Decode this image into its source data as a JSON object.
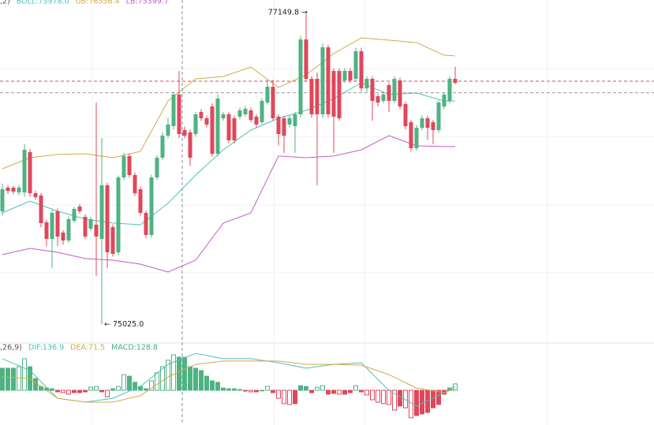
{
  "chart_data": [
    {
      "type": "candlestick",
      "header": [
        {
          "text": ",2)",
          "color": "#555555"
        },
        {
          "text": "BOLL:75978.0",
          "color": "#4fc1b5"
        },
        {
          "text": "UB:76556.4",
          "color": "#d4a94a"
        },
        {
          "text": "LB:75399.7",
          "color": "#c45cc8"
        }
      ],
      "ylim": [
        74914,
        77247
      ],
      "up_color": "#4fb283",
      "down_color": "#e0475b",
      "open": [
        75800,
        75962,
        75962,
        75929,
        75929,
        76205,
        75924,
        75908,
        75724,
        75611,
        75800,
        75654,
        75600,
        75735,
        75832,
        75762,
        75681,
        75708,
        75611,
        75978,
        75692,
        75519,
        76032,
        76178,
        76048,
        75951,
        75789,
        75638,
        76032,
        76167,
        76318,
        76383,
        76599,
        76356,
        76340,
        76329,
        76480,
        76437,
        76518,
        76194,
        76437,
        76464,
        76437,
        76448,
        76464,
        76491,
        76448,
        76410,
        76545,
        76653,
        76448,
        76437,
        76394,
        76383,
        76464,
        76977,
        76707,
        76707,
        76464,
        76923,
        76761,
        76761,
        76696,
        76761,
        76707,
        76896,
        76642,
        76707,
        76588,
        76556,
        76664,
        76556,
        76696,
        76534,
        76410,
        76232,
        76372,
        76437,
        76410,
        76356,
        76518,
        76556,
        76707
      ],
      "high": [
        75990,
        75980,
        75975,
        75980,
        76260,
        76225,
        75940,
        75925,
        75740,
        75810,
        75820,
        75670,
        75765,
        75830,
        75850,
        75780,
        75760,
        76545,
        76302,
        75995,
        75710,
        76045,
        76200,
        76195,
        76065,
        75970,
        75805,
        76050,
        76185,
        76340,
        76440,
        76620,
        76761,
        76380,
        76360,
        76480,
        76500,
        76455,
        76540,
        76600,
        76480,
        76480,
        76455,
        76510,
        76520,
        76510,
        76465,
        76575,
        76700,
        76700,
        76465,
        76455,
        76455,
        76480,
        77000,
        77149.8,
        76725,
        76750,
        76950,
        76940,
        76780,
        76780,
        76780,
        76780,
        76920,
        76920,
        76725,
        76725,
        76605,
        76620,
        76680,
        76725,
        76715,
        76550,
        76425,
        76390,
        76455,
        76455,
        76425,
        76560,
        76615,
        76725,
        76790
      ],
      "low": [
        75770,
        75920,
        75915,
        75910,
        75900,
        75900,
        75880,
        75690,
        75560,
        75411,
        75560,
        75570,
        75585,
        75720,
        75785,
        75610,
        75665,
        75357,
        75025.0,
        75410,
        75490,
        75500,
        76015,
        76030,
        75905,
        75770,
        75615,
        75620,
        76015,
        76150,
        76300,
        76360,
        76300,
        76300,
        76110,
        76310,
        76420,
        76375,
        76175,
        76175,
        76420,
        76265,
        76265,
        76430,
        76450,
        76410,
        76375,
        76395,
        76530,
        76420,
        76250,
        76200,
        76375,
        76200,
        76440,
        76690,
        76440,
        75978,
        76440,
        76440,
        76200,
        76420,
        76680,
        76680,
        76690,
        76620,
        76620,
        76420,
        76520,
        76540,
        76480,
        76540,
        76500,
        76360,
        76210,
        76215,
        76355,
        76290,
        76260,
        76340,
        76500,
        76540,
        76670
      ],
      "close": [
        75951,
        75940,
        75935,
        75962,
        76221,
        75924,
        75897,
        75719,
        75611,
        75789,
        75627,
        75600,
        75746,
        75816,
        75800,
        75627,
        75746,
        75627,
        75978,
        75519,
        75508,
        76032,
        76178,
        76048,
        75924,
        75789,
        75638,
        76032,
        76167,
        76318,
        76394,
        76599,
        76329,
        76318,
        76167,
        76464,
        76437,
        76394,
        76194,
        76572,
        76464,
        76286,
        76286,
        76491,
        76502,
        76426,
        76394,
        76556,
        76653,
        76437,
        76329,
        76318,
        76437,
        76464,
        76977,
        76707,
        76464,
        76464,
        76923,
        76464,
        76448,
        76437,
        76761,
        76696,
        76896,
        76642,
        76707,
        76556,
        76545,
        76599,
        76556,
        76707,
        76518,
        76383,
        76232,
        76372,
        76437,
        76372,
        76356,
        76545,
        76599,
        76707,
        76680
      ],
      "overlays": [
        {
          "color": "#d4a94a",
          "x": [
            0,
            5,
            10,
            15,
            20,
            25,
            30,
            35,
            40,
            45,
            50,
            55,
            60,
            65,
            70,
            75,
            80,
            82
          ],
          "values": [
            76091,
            76167,
            76189,
            76194,
            76167,
            76210,
            76556,
            76707,
            76723,
            76788,
            76648,
            76734,
            76880,
            76988,
            76972,
            76955,
            76869,
            76864
          ]
        },
        {
          "color": "#4fc1b5",
          "x": [
            0,
            5,
            10,
            15,
            20,
            25,
            30,
            35,
            40,
            45,
            50,
            55,
            60,
            65,
            70,
            75,
            80,
            82
          ],
          "values": [
            75789,
            75870,
            75800,
            75746,
            75719,
            75708,
            75854,
            76048,
            76221,
            76356,
            76437,
            76491,
            76572,
            76680,
            76599,
            76610,
            76556,
            76556
          ]
        },
        {
          "color": "#c45cc8",
          "x": [
            0,
            5,
            10,
            15,
            20,
            25,
            30,
            35,
            40,
            45,
            50,
            55,
            60,
            65,
            70,
            75,
            80,
            82
          ],
          "values": [
            75503,
            75546,
            75519,
            75476,
            75465,
            75438,
            75384,
            75465,
            75719,
            75789,
            76178,
            76167,
            76178,
            76221,
            76318,
            76248,
            76243,
            76243
          ]
        }
      ],
      "price_lines": [
        {
          "value": 76691,
          "color": "#e0475b"
        },
        {
          "value": 76612,
          "color": "#999999"
        }
      ],
      "annotations": [
        "77149.8 →",
        "← 75025.0"
      ]
    },
    {
      "type": "macd",
      "header": [
        {
          "text": ",26,9)",
          "color": "#555555"
        },
        {
          "text": "DIF:136.9",
          "color": "#4fc1b5"
        },
        {
          "text": "DEA:71.5",
          "color": "#d4a94a"
        },
        {
          "text": "MACD:128.8",
          "color": "#3fae8a"
        }
      ],
      "ylim": [
        -135,
        178
      ],
      "up_color": "#4fb283",
      "down_color": "#e0475b",
      "values": [
        86,
        86,
        86,
        92,
        123,
        92,
        46,
        15,
        9,
        6,
        -6,
        -9,
        -15,
        -9,
        -9,
        -6,
        12,
        15,
        -6,
        -25,
        6,
        15,
        61,
        55,
        31,
        15,
        6,
        37,
        68,
        92,
        117,
        138,
        129,
        128.8,
        92,
        86,
        77,
        55,
        37,
        31,
        9,
        6,
        6,
        3,
        -3,
        -6,
        -6,
        0,
        15,
        -9,
        -31,
        -52,
        -55,
        -52,
        18,
        15,
        -9,
        12,
        18,
        -15,
        -12,
        -15,
        -15,
        -9,
        18,
        -6,
        -18,
        -37,
        -46,
        -52,
        -55,
        -77,
        -61,
        -68,
        -107,
        -98,
        -92,
        -86,
        -68,
        -55,
        -15,
        9,
        25
      ],
      "lines": [
        {
          "color": "#4fc1b5",
          "x": [
            0,
            5,
            10,
            15,
            20,
            25,
            30,
            35,
            40,
            45,
            50,
            55,
            60,
            65,
            70,
            75,
            80,
            82
          ],
          "values": [
            123,
            77,
            -31,
            -46,
            -31,
            15,
            101,
            144,
            123,
            123,
            107,
            86,
            101,
            107,
            0,
            -61,
            -9,
            15
          ]
        },
        {
          "color": "#d4a94a",
          "x": [
            0,
            5,
            10,
            15,
            20,
            25,
            30,
            35,
            40,
            45,
            50,
            55,
            60,
            65,
            70,
            75,
            80,
            82
          ],
          "values": [
            52,
            46,
            -31,
            -46,
            -46,
            -21,
            52,
            101,
            114,
            114,
            114,
            101,
            101,
            98,
            61,
            9,
            -9,
            6
          ]
        }
      ]
    }
  ]
}
